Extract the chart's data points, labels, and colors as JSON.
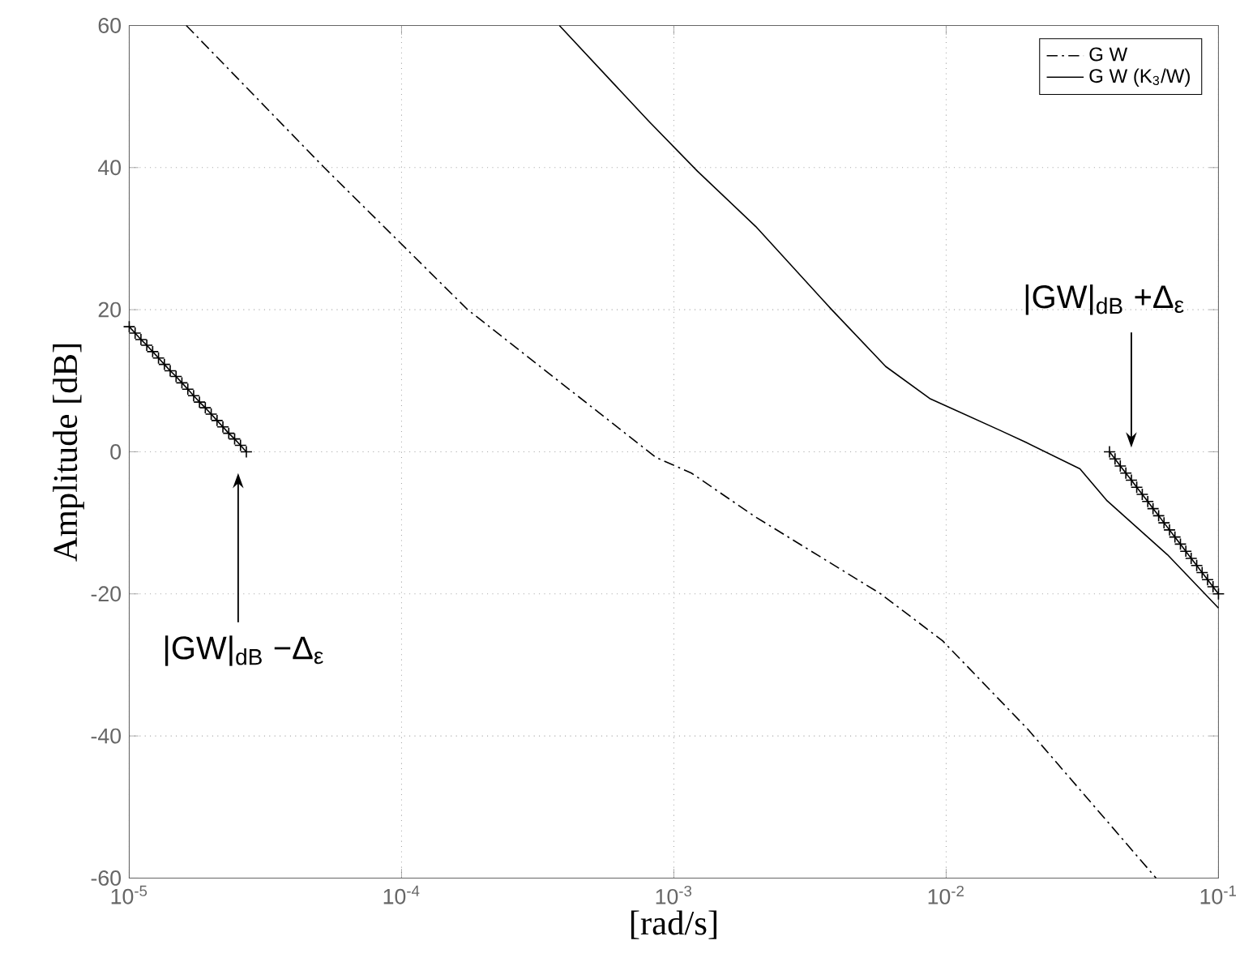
{
  "chart_data": {
    "type": "line",
    "xlabel": "[rad/s]",
    "ylabel": "Amplitude [dB]",
    "log": "x",
    "grid": true,
    "legend": "top right",
    "xlim": [
      1e-05,
      0.1
    ],
    "ylim": [
      -60,
      60
    ],
    "xticks": [
      {
        "value": 1e-05,
        "label": "10$^{-5}$"
      },
      {
        "value": 0.0001,
        "label": "10$^{-4}$"
      },
      {
        "value": 0.001,
        "label": "10$^{-3}$"
      },
      {
        "value": 0.01,
        "label": "10$^{-2}$"
      },
      {
        "value": 0.1,
        "label": "10$^{-1}$"
      }
    ],
    "yticks": [
      -60,
      -40,
      -20,
      0,
      20,
      40,
      60
    ],
    "series": [
      {
        "name": "G W",
        "color": "#000000",
        "line_style": "dashdot",
        "marker": "none",
        "x": [
          1.62e-05,
          5.2e-05,
          0.000175,
          0.00086,
          0.00116,
          0.002,
          0.00575,
          0.0097,
          0.02,
          0.059
        ],
        "values": [
          60,
          40,
          20,
          -0.8,
          -3.0,
          -9.2,
          -20,
          -26.6,
          -39.1,
          -60
        ]
      },
      {
        "name": "G W (K$_{3}$/W)",
        "color": "#000000",
        "line_style": "solid",
        "marker": "none",
        "x": [
          0.00038,
          0.00081,
          0.00122,
          0.002,
          0.0038,
          0.006,
          0.0087,
          0.0158,
          0.0197,
          0.031,
          0.039,
          0.065,
          0.1
        ],
        "values": [
          60,
          46.5,
          39.5,
          31.7,
          20,
          12,
          7.5,
          3.0,
          1.3,
          -2.4,
          -6.9,
          -14.5,
          -22
        ]
      },
      {
        "color": "#000000",
        "line_style": "solid",
        "marker": "cross",
        "x": [
          1e-05,
          1.051e-05,
          1.104e-05,
          1.16e-05,
          1.219e-05,
          1.281e-05,
          1.346e-05,
          1.414e-05,
          1.486e-05,
          1.561e-05,
          1.641e-05,
          1.724e-05,
          1.811e-05,
          1.903e-05,
          2e-05,
          2.101e-05,
          2.208e-05,
          2.32e-05,
          2.438e-05,
          2.562e-05,
          2.692e-05
        ],
        "values": [
          17.6,
          16.7,
          15.8,
          15.0,
          14.1,
          13.2,
          12.3,
          11.4,
          10.6,
          9.7,
          8.8,
          7.9,
          7.0,
          6.2,
          5.3,
          4.4,
          3.5,
          2.6,
          1.8,
          0.9,
          0.0
        ]
      },
      {
        "color": "#000000",
        "line_style": "solid",
        "marker": "cross",
        "x": [
          0.0398,
          0.0417,
          0.0436,
          0.0457,
          0.0479,
          0.0501,
          0.0525,
          0.055,
          0.0575,
          0.0603,
          0.0631,
          0.0661,
          0.0692,
          0.0725,
          0.0759,
          0.0794,
          0.0832,
          0.0871,
          0.0912,
          0.0955,
          0.1
        ],
        "values": [
          0,
          -1,
          -2,
          -3,
          -4,
          -5,
          -6,
          -7,
          -8,
          -9,
          -10,
          -11,
          -12,
          -13,
          -14,
          -15,
          -16,
          -17,
          -18,
          -19,
          -20
        ]
      }
    ],
    "annotations": [
      "|GW|$_{dB}$ −Δ$_{ε}$",
      "|GW|$_{dB}$ +Δ$_{ε}$"
    ]
  }
}
